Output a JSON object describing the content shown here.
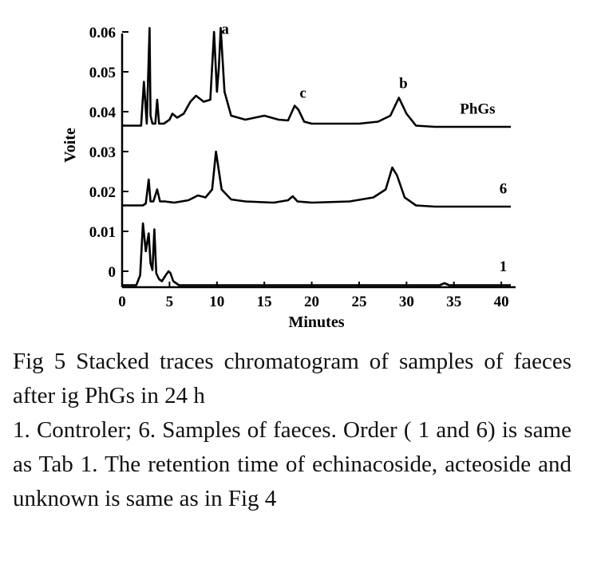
{
  "chart_data": {
    "type": "line",
    "xlabel": "Minutes",
    "ylabel": "Voite",
    "xlim": [
      0,
      41
    ],
    "ylim": [
      -0.004,
      0.062
    ],
    "x_ticks": [
      0,
      5,
      10,
      15,
      20,
      25,
      30,
      35,
      40
    ],
    "x_tick_labels": [
      "0",
      "5",
      "10",
      "15",
      "20",
      "25",
      "30",
      "35",
      "40"
    ],
    "y_ticks": [
      0,
      0.01,
      0.02,
      0.03,
      0.04,
      0.05,
      0.06
    ],
    "y_tick_labels": [
      "0",
      "0.01",
      "0.02",
      "0.03",
      "0.04",
      "0.05",
      "0.06"
    ],
    "series": [
      {
        "name": "PhGs",
        "x": [
          0,
          2.0,
          2.3,
          2.6,
          2.9,
          3.0,
          3.2,
          3.5,
          3.7,
          3.9,
          4.4,
          5.0,
          5.3,
          5.8,
          6.5,
          7.2,
          7.8,
          8.6,
          9.3,
          9.7,
          10.0,
          10.2,
          10.4,
          10.8,
          11.5,
          13.0,
          15.0,
          16.5,
          17.5,
          18.2,
          18.6,
          19.2,
          20.0,
          22.0,
          25.0,
          27.0,
          28.3,
          29.2,
          30.0,
          31.0,
          33.0,
          41.0
        ],
        "y": [
          0.0365,
          0.0365,
          0.0475,
          0.037,
          0.061,
          0.039,
          0.037,
          0.037,
          0.043,
          0.037,
          0.037,
          0.038,
          0.0395,
          0.0385,
          0.0395,
          0.0425,
          0.044,
          0.0425,
          0.043,
          0.06,
          0.045,
          0.051,
          0.061,
          0.045,
          0.039,
          0.038,
          0.039,
          0.038,
          0.0378,
          0.0415,
          0.0405,
          0.0375,
          0.037,
          0.037,
          0.037,
          0.0375,
          0.039,
          0.0435,
          0.0395,
          0.0365,
          0.0362,
          0.0362
        ]
      },
      {
        "name": "6",
        "x": [
          0,
          2.2,
          2.5,
          2.8,
          3.0,
          3.3,
          3.7,
          4.0,
          4.5,
          5.5,
          7.0,
          8.0,
          8.8,
          9.5,
          9.9,
          10.5,
          11.5,
          13.0,
          16.0,
          17.5,
          18.0,
          18.5,
          20.0,
          24.0,
          26.5,
          27.8,
          28.5,
          29.0,
          29.8,
          31.0,
          33.0,
          41.0
        ],
        "y": [
          0.0165,
          0.0165,
          0.017,
          0.023,
          0.0175,
          0.0175,
          0.0205,
          0.0175,
          0.0175,
          0.0172,
          0.0178,
          0.019,
          0.0185,
          0.0205,
          0.03,
          0.0205,
          0.018,
          0.0175,
          0.0172,
          0.0178,
          0.0188,
          0.0175,
          0.0172,
          0.0175,
          0.0185,
          0.0205,
          0.026,
          0.024,
          0.0185,
          0.0165,
          0.0162,
          0.0162
        ]
      },
      {
        "name": "1",
        "x": [
          0,
          1.5,
          1.9,
          2.2,
          2.5,
          2.8,
          3.0,
          3.2,
          3.4,
          3.6,
          3.9,
          4.2,
          4.6,
          4.9,
          5.1,
          5.4,
          6.0,
          8.0,
          15.0,
          25.0,
          33.5,
          34.0,
          34.5,
          41.0
        ],
        "y": [
          -0.0035,
          -0.0035,
          -0.001,
          0.012,
          0.005,
          0.0095,
          0.002,
          0.0003,
          0.0105,
          -0.0005,
          -0.002,
          -0.0025,
          -0.001,
          0.0,
          -0.0005,
          -0.0025,
          -0.0035,
          -0.0035,
          -0.0035,
          -0.0035,
          -0.0035,
          -0.003,
          -0.0035,
          -0.0035
        ]
      }
    ],
    "peak_labels": [
      {
        "text": "a",
        "x": 10.2,
        "y": 0.0595
      },
      {
        "text": "c",
        "x": 18.4,
        "y": 0.0435
      },
      {
        "text": "b",
        "x": 29.0,
        "y": 0.0459
      }
    ],
    "trace_label_positions": [
      {
        "series": "PhGs",
        "x": 37.5,
        "y": 0.0395
      },
      {
        "series": "6",
        "x": 40.2,
        "y": 0.0195
      },
      {
        "series": "1",
        "x": 40.2,
        "y": 0.0
      }
    ]
  },
  "caption": {
    "line1": "Fig 5   Stacked traces chromatogram of samples of faeces after ig PhGs in 24 h",
    "line2": "1. Controler;  6. Samples of faeces. Order ( 1 and 6)  is  same  as  Tab  1.  The  retention  time  of echinacoside, acteoside and unknown is same as in Fig 4"
  }
}
